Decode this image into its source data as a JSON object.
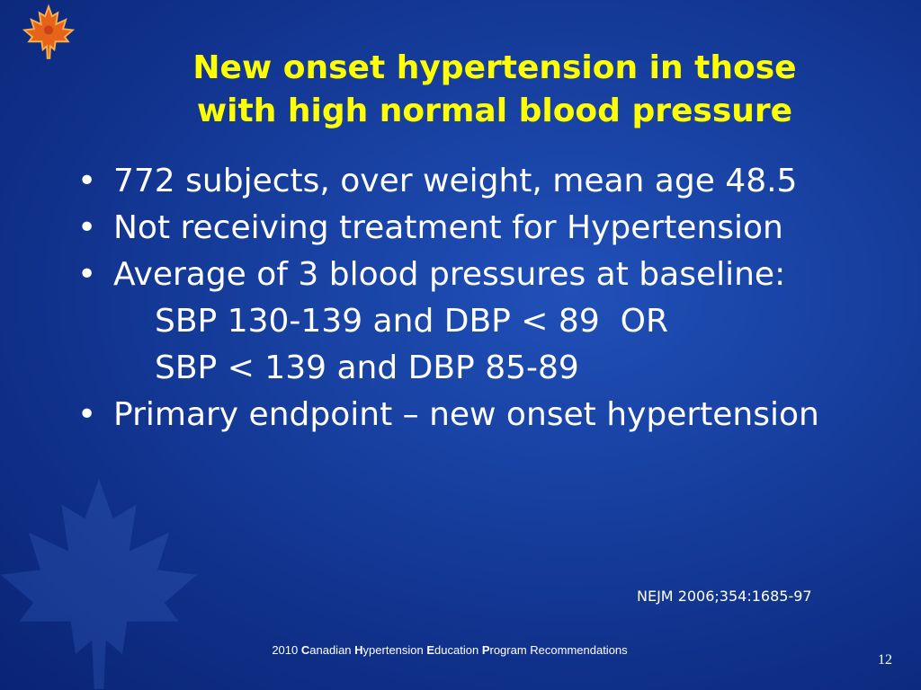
{
  "slide": {
    "title_lines": [
      "New onset hypertension in those",
      "with high normal blood pressure"
    ],
    "bullets": [
      {
        "text": "772 subjects, over weight, mean age 48.5"
      },
      {
        "text": "Not receiving treatment for Hypertension"
      },
      {
        "text": "Average of 3 blood pressures at baseline:"
      }
    ],
    "sub_lines": [
      "SBP 130-139 and DBP < 89  OR",
      "SBP < 139 and DBP 85-89"
    ],
    "last_bullet": {
      "text": "Primary endpoint – new onset hypertension"
    },
    "bullet_symbol": "•",
    "citation": "NEJM 2006;354:1685-97",
    "footer": {
      "year": "2010 ",
      "w1_initial": "C",
      "w1_rest": "anadian ",
      "w2_initial": "H",
      "w2_rest": "ypertension ",
      "w3_initial": "E",
      "w3_rest": "ducation ",
      "w4_initial": "P",
      "w4_rest": "rogram Recommendations"
    },
    "page_number": "12",
    "colors": {
      "background": "#173f9f",
      "title": "#ffff00",
      "text": "#ffffff",
      "logo": "#e8631a"
    },
    "icons": {
      "logo": "maple-leaf-logo-icon",
      "watermark": "maple-leaf-watermark-icon"
    }
  }
}
